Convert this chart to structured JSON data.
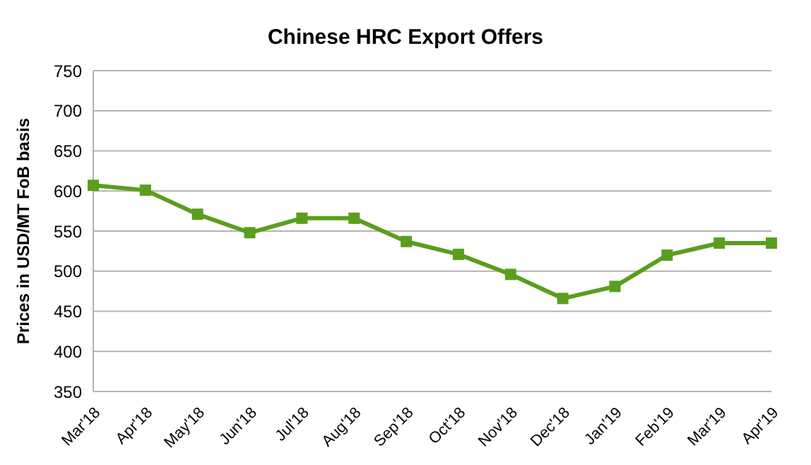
{
  "chart_data": {
    "type": "line",
    "title": "Chinese HRC Export Offers",
    "ylabel": "Prices in USD/MT FoB basis",
    "categories": [
      "Mar'18",
      "Apr'18",
      "May'18",
      "Jun'18",
      "Jul'18",
      "Aug'18",
      "Sep'18",
      "Oct'18",
      "Nov'18",
      "Dec'18",
      "Jan'19",
      "Feb'19",
      "Mar'19",
      "Apr'19"
    ],
    "series": [
      {
        "color": "#5a9e1e",
        "values": [
          607,
          601,
          571,
          548,
          566,
          566,
          537,
          521,
          496,
          466,
          481,
          520,
          535,
          535
        ]
      }
    ],
    "ylim": [
      350,
      750
    ],
    "yticks": [
      350,
      400,
      450,
      500,
      550,
      600,
      650,
      700,
      750
    ],
    "grid": "y",
    "marker": "square",
    "line_style": "solid"
  }
}
